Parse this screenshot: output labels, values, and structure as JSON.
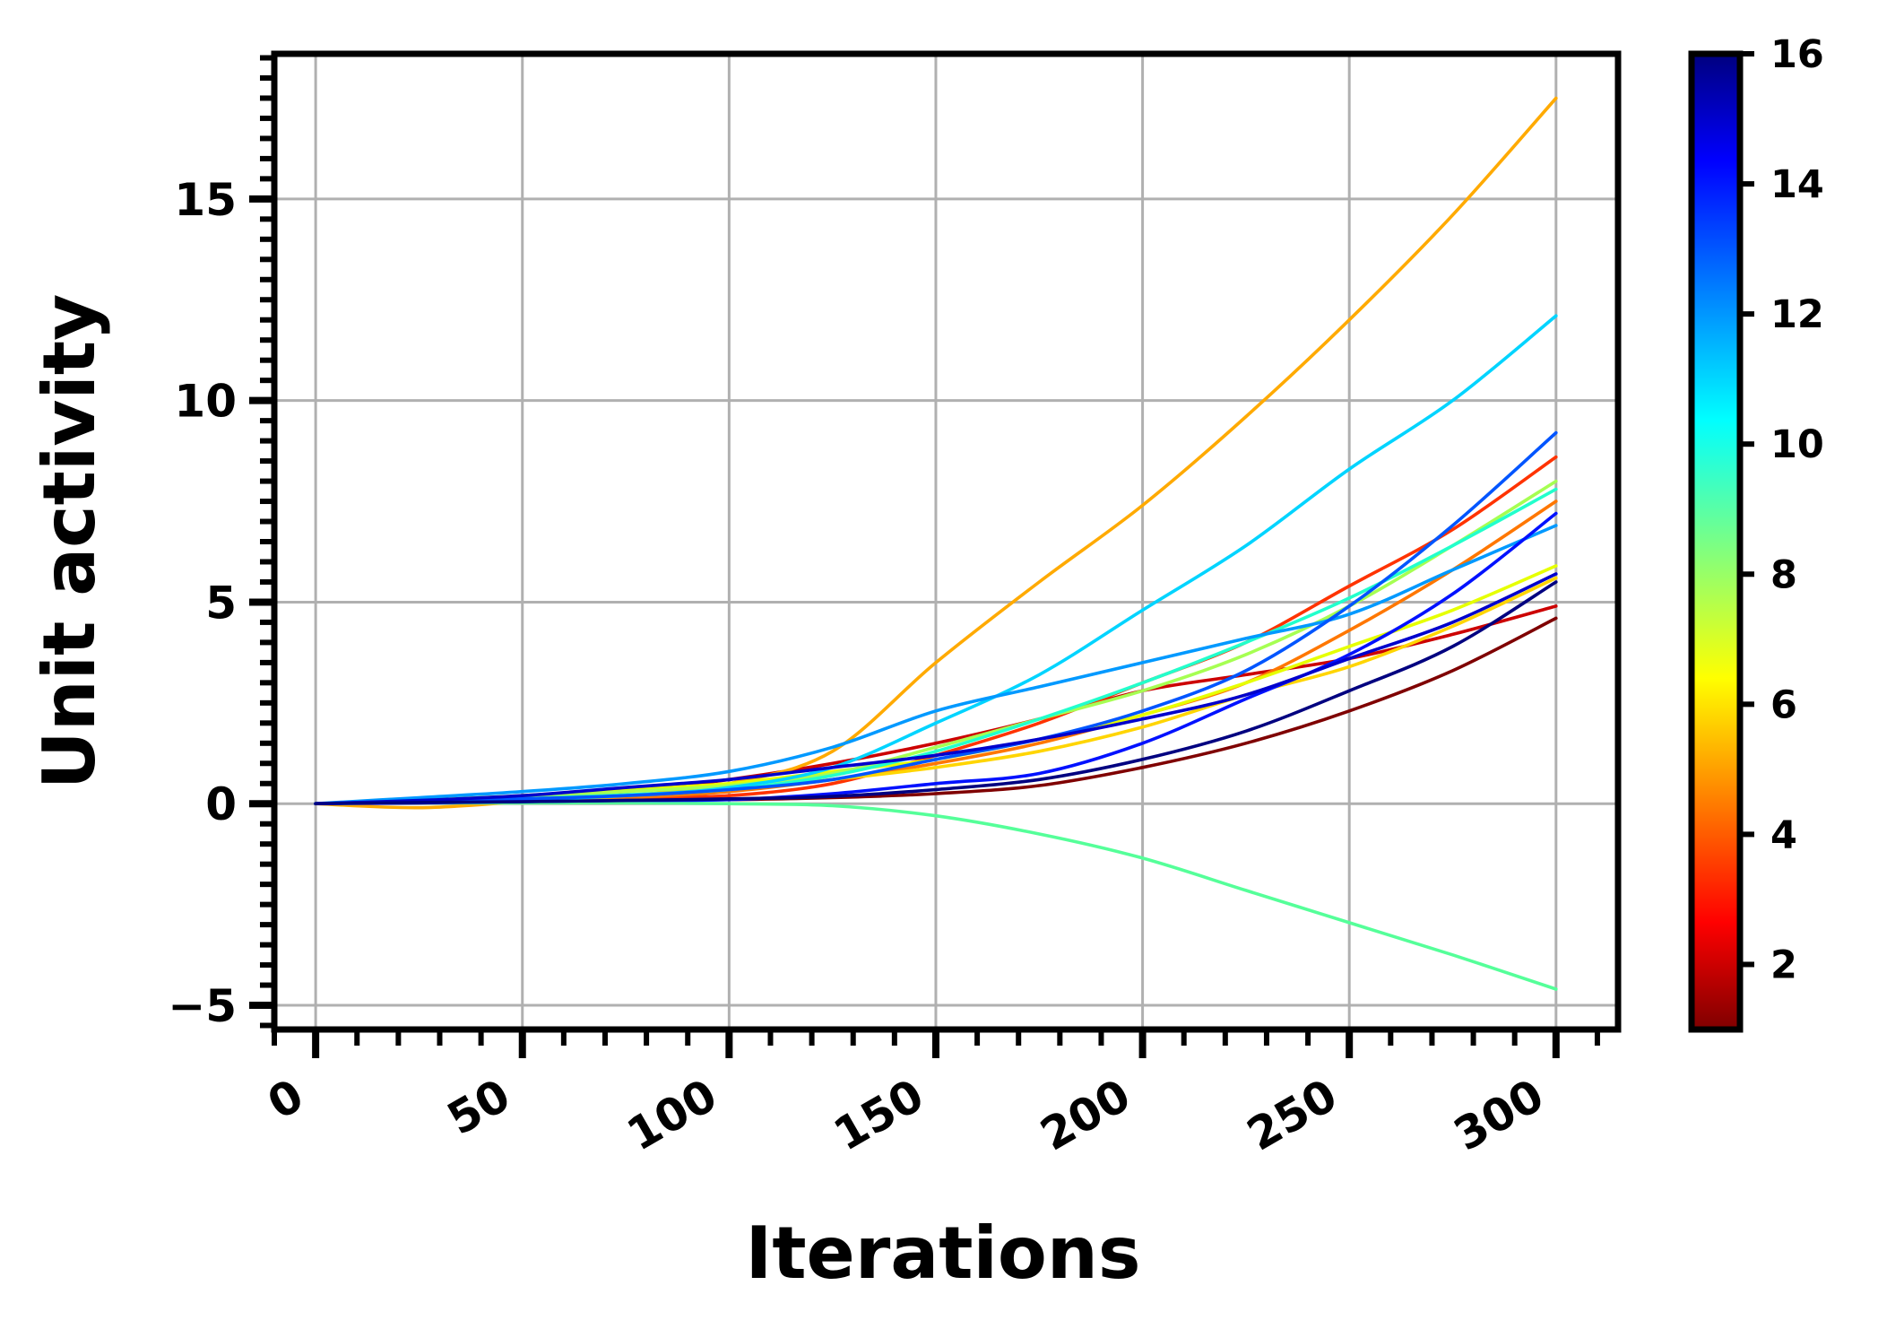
{
  "chart_data": {
    "type": "line",
    "xlabel": "Iterations",
    "ylabel": "Unit activity",
    "xlim": [
      -10,
      315
    ],
    "ylim": [
      -5.6,
      18.6
    ],
    "x_ticks": [
      0,
      50,
      100,
      150,
      200,
      250,
      300
    ],
    "x_tick_labels": [
      "0",
      "50",
      "100",
      "150",
      "200",
      "250",
      "300"
    ],
    "y_ticks": [
      -5,
      0,
      5,
      10,
      15
    ],
    "y_tick_labels": [
      "−5",
      "0",
      "5",
      "10",
      "15"
    ],
    "grid": true,
    "legend": "none",
    "colorbar": {
      "colormap": "jet",
      "range": [
        1,
        16
      ],
      "ticks": [
        2,
        4,
        6,
        8,
        10,
        12,
        14,
        16
      ],
      "tick_labels": [
        "2",
        "4",
        "6",
        "8",
        "10",
        "12",
        "14",
        "16"
      ],
      "placement": "right"
    },
    "colors": {
      "grid": "#b0b0b0",
      "axis": "#000000",
      "background": "#ffffff"
    },
    "series": [
      {
        "color": "#7f0000",
        "x": [
          0,
          25,
          50,
          75,
          100,
          125,
          150,
          175,
          200,
          225,
          250,
          275,
          300
        ],
        "y": [
          0,
          0.02,
          0.05,
          0.08,
          0.1,
          0.15,
          0.25,
          0.45,
          0.9,
          1.5,
          2.3,
          3.3,
          4.6
        ]
      },
      {
        "color": "#cc0000",
        "x": [
          0,
          25,
          50,
          75,
          100,
          125,
          150,
          175,
          200,
          225,
          250,
          275,
          300
        ],
        "y": [
          0,
          0.05,
          0.15,
          0.3,
          0.6,
          1.0,
          1.5,
          2.1,
          2.8,
          3.2,
          3.6,
          4.2,
          4.9
        ]
      },
      {
        "color": "#ff3300",
        "x": [
          0,
          25,
          50,
          75,
          100,
          125,
          150,
          175,
          200,
          225,
          250,
          275,
          300
        ],
        "y": [
          0,
          0.05,
          0.1,
          0.15,
          0.2,
          0.5,
          1.2,
          2.0,
          3.0,
          4.0,
          5.4,
          6.8,
          8.6
        ]
      },
      {
        "color": "#ff7700",
        "x": [
          0,
          25,
          50,
          75,
          100,
          125,
          150,
          175,
          200,
          225,
          250,
          275,
          300
        ],
        "y": [
          0,
          0.03,
          0.08,
          0.15,
          0.3,
          0.6,
          1.0,
          1.5,
          2.2,
          3.0,
          4.3,
          5.8,
          7.5
        ]
      },
      {
        "color": "#ffaa00",
        "x": [
          0,
          25,
          50,
          75,
          100,
          125,
          150,
          175,
          200,
          225,
          250,
          275,
          300
        ],
        "y": [
          0,
          -0.1,
          0.05,
          0.2,
          0.5,
          1.3,
          3.5,
          5.5,
          7.4,
          9.6,
          12.0,
          14.6,
          17.5
        ]
      },
      {
        "color": "#ffd500",
        "x": [
          0,
          25,
          50,
          75,
          100,
          125,
          150,
          175,
          200,
          225,
          250,
          275,
          300
        ],
        "y": [
          0,
          0.05,
          0.12,
          0.2,
          0.35,
          0.6,
          0.9,
          1.3,
          1.9,
          2.7,
          3.4,
          4.4,
          5.6
        ]
      },
      {
        "color": "#e6ff00",
        "x": [
          0,
          25,
          50,
          75,
          100,
          125,
          150,
          175,
          200,
          225,
          250,
          275,
          300
        ],
        "y": [
          0,
          0.08,
          0.2,
          0.35,
          0.5,
          0.8,
          1.1,
          1.6,
          2.2,
          3.0,
          3.9,
          4.8,
          5.9
        ]
      },
      {
        "color": "#a6ff52",
        "x": [
          0,
          25,
          50,
          75,
          100,
          125,
          150,
          175,
          200,
          225,
          250,
          275,
          300
        ],
        "y": [
          0,
          0.08,
          0.15,
          0.3,
          0.45,
          0.75,
          1.4,
          2.1,
          2.8,
          3.7,
          4.9,
          6.4,
          8.0
        ]
      },
      {
        "color": "#55ff99",
        "x": [
          0,
          25,
          50,
          75,
          100,
          125,
          150,
          175,
          200,
          225,
          250,
          275,
          300
        ],
        "y": [
          0,
          0.02,
          0.02,
          0.02,
          0.0,
          -0.05,
          -0.3,
          -0.75,
          -1.35,
          -2.15,
          -2.95,
          -3.75,
          -4.6
        ]
      },
      {
        "color": "#22ffcc",
        "x": [
          0,
          25,
          50,
          75,
          100,
          125,
          150,
          175,
          200,
          225,
          250,
          275,
          300
        ],
        "y": [
          0,
          0.05,
          0.12,
          0.22,
          0.35,
          0.7,
          1.3,
          2.1,
          3.0,
          4.0,
          5.1,
          6.4,
          7.8
        ]
      },
      {
        "color": "#00d4ff",
        "x": [
          0,
          25,
          50,
          75,
          100,
          125,
          150,
          175,
          200,
          225,
          250,
          275,
          300
        ],
        "y": [
          0,
          0.05,
          0.1,
          0.2,
          0.4,
          0.9,
          2.0,
          3.2,
          4.8,
          6.4,
          8.3,
          10.0,
          12.1
        ]
      },
      {
        "color": "#0099ff",
        "x": [
          0,
          25,
          50,
          75,
          100,
          125,
          150,
          175,
          200,
          225,
          250,
          275,
          300
        ],
        "y": [
          0,
          0.15,
          0.3,
          0.5,
          0.8,
          1.4,
          2.3,
          2.9,
          3.5,
          4.1,
          4.7,
          5.8,
          6.9
        ]
      },
      {
        "color": "#0055ff",
        "x": [
          0,
          25,
          50,
          75,
          100,
          125,
          150,
          175,
          200,
          225,
          250,
          275,
          300
        ],
        "y": [
          0,
          0.05,
          0.12,
          0.2,
          0.35,
          0.6,
          1.1,
          1.6,
          2.3,
          3.3,
          4.9,
          6.9,
          9.2
        ]
      },
      {
        "color": "#0011ff",
        "x": [
          0,
          25,
          50,
          75,
          100,
          125,
          150,
          175,
          200,
          225,
          250,
          275,
          300
        ],
        "y": [
          0,
          0.02,
          0.05,
          0.08,
          0.1,
          0.25,
          0.5,
          0.75,
          1.5,
          2.6,
          3.7,
          5.2,
          7.2
        ]
      },
      {
        "color": "#0000cc",
        "x": [
          0,
          25,
          50,
          75,
          100,
          125,
          150,
          175,
          200,
          225,
          250,
          275,
          300
        ],
        "y": [
          0,
          0.08,
          0.2,
          0.4,
          0.6,
          0.9,
          1.2,
          1.6,
          2.1,
          2.7,
          3.6,
          4.5,
          5.7
        ]
      },
      {
        "color": "#000080",
        "x": [
          0,
          25,
          50,
          75,
          100,
          125,
          150,
          175,
          200,
          225,
          250,
          275,
          300
        ],
        "y": [
          0,
          0.03,
          0.05,
          0.08,
          0.12,
          0.18,
          0.35,
          0.6,
          1.1,
          1.8,
          2.8,
          3.9,
          5.5
        ]
      }
    ]
  }
}
